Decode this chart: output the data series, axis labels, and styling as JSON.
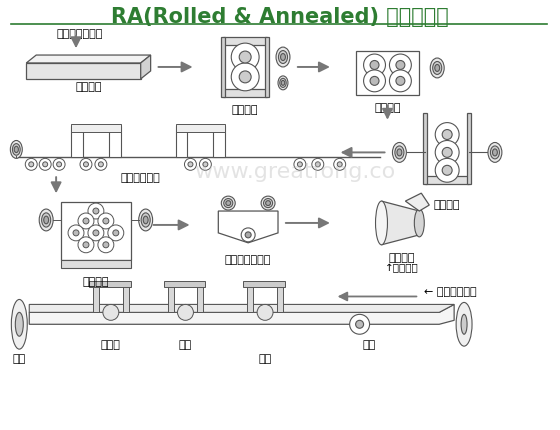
{
  "title_en": "RA(Rolled & Annealed) ",
  "title_zh": "銅生產流程",
  "title_color": "#2E7D32",
  "bg_color": "#ffffff",
  "watermark": "www.greatfong.co",
  "watermark_color": "#bbbbbb",
  "labels": {
    "molten": "（溶層、鑄造）",
    "ingot": "（鑄胚）",
    "hot_roll": "（熱軋）",
    "face": "（面削）",
    "mid_roll": "（中軋）",
    "anneal": "（退火酸洗）",
    "fine_roll": "（精軋）",
    "degrease": "（脫脂、洗淨）",
    "raw_foil": "（原箔）",
    "raw_foil2": "↑原箔工程",
    "surface": "← 表面處理工程",
    "foil": "原箔",
    "pre_treat": "前處理",
    "roughen": "粗化",
    "anti_rust": "防鏽",
    "finished": "成品"
  },
  "label_color": "#000000",
  "arrow_color": "#777777",
  "line_color": "#555555",
  "figsize": [
    5.6,
    4.3
  ],
  "dpi": 100
}
